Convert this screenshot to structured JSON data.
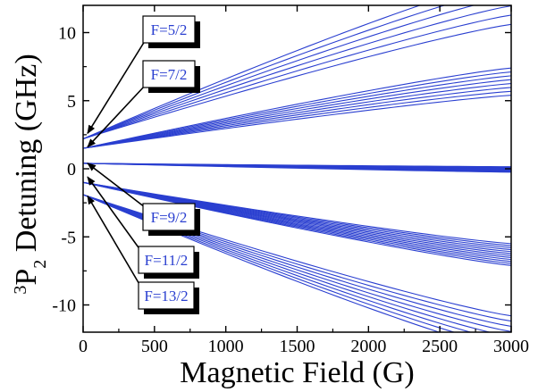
{
  "chart_data": {
    "type": "line",
    "xlabel": "Magnetic Field  (G)",
    "ylabel_sup": "3",
    "ylabel_main": "P",
    "ylabel_sub": "2",
    "ylabel_rest": " Detuning (GHz)",
    "xlim": [
      0,
      3000
    ],
    "ylim": [
      -12,
      12
    ],
    "xticks": [
      0,
      500,
      1000,
      1500,
      2000,
      2500,
      3000
    ],
    "yticks": [
      -10,
      -5,
      0,
      5,
      10
    ],
    "grid": false,
    "line_color": "#2a3fd0",
    "groups": [
      {
        "name": "F=5/2",
        "y0": 2.2,
        "lines": 6,
        "end_min": 10.6,
        "end_max": 14.0
      },
      {
        "name": "F=7/2",
        "y0": 1.5,
        "lines": 8,
        "end_min": 5.4,
        "end_max": 7.4
      },
      {
        "name": "F=9/2",
        "y0": 0.4,
        "lines": 10,
        "end_min": -0.25,
        "end_max": 0.15
      },
      {
        "name": "F=11/2",
        "y0": -1.0,
        "lines": 12,
        "end_min": -7.1,
        "end_max": -5.5
      },
      {
        "name": "F=13/2",
        "y0": -1.9,
        "lines": 8,
        "end_min": -13.5,
        "end_max": -10.8
      }
    ],
    "annotations": [
      {
        "text": "F=5/2",
        "target": [
          0,
          2.6
        ]
      },
      {
        "text": "F=7/2",
        "target": [
          0,
          1.6
        ]
      },
      {
        "text": "F=9/2",
        "target": [
          0,
          0.4
        ]
      },
      {
        "text": "F=11/2",
        "target": [
          0,
          -0.6
        ]
      },
      {
        "text": "F=13/2",
        "target": [
          0,
          -2.0
        ]
      }
    ]
  }
}
